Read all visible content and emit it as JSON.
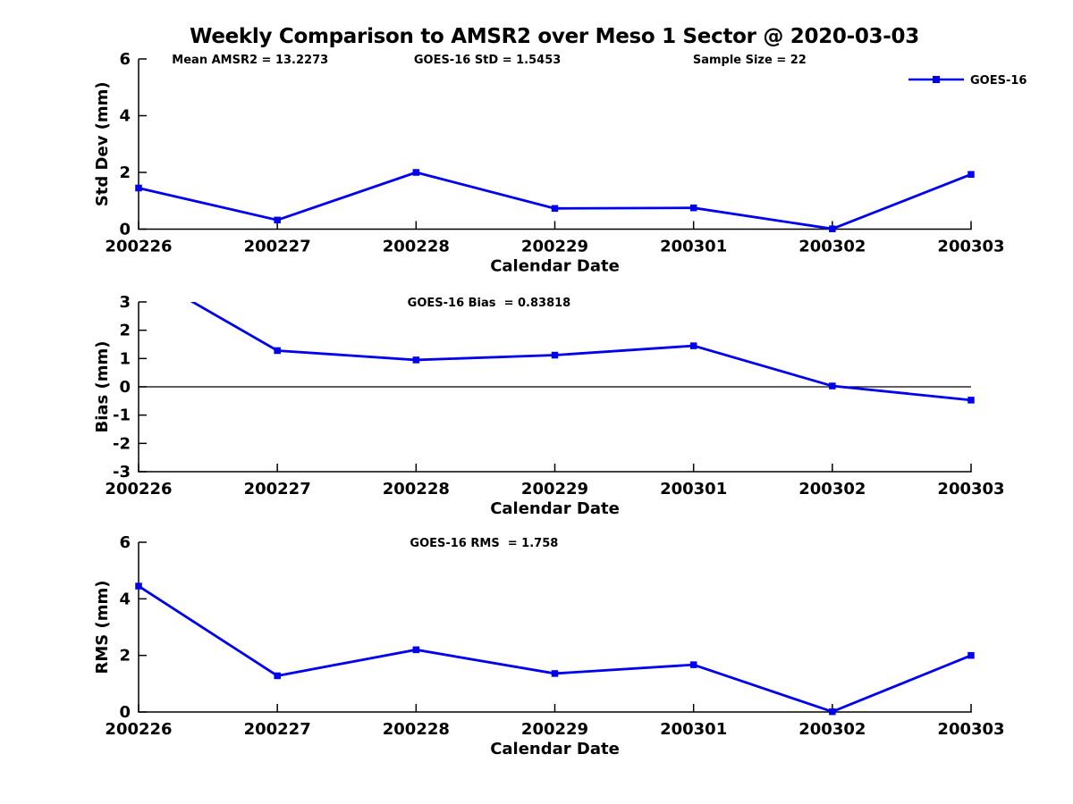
{
  "page": {
    "title": "Weekly Comparison to AMSR2 over Meso 1 Sector @ 2020-03-03"
  },
  "legend": {
    "label": "GOES-16",
    "marker": "square"
  },
  "colors": {
    "line": "#0000ee",
    "axis": "#000000",
    "zero_line": "#000000",
    "text": "#000000",
    "background": "#ffffff"
  },
  "chart_data": [
    {
      "type": "line",
      "id": "stddev",
      "title": "",
      "annotations": [
        "Mean AMSR2 = 13.2273",
        "GOES-16 StD = 1.5453",
        "Sample Size = 22"
      ],
      "xlabel": "Calendar Date",
      "ylabel": "Std Dev (mm)",
      "ylim": [
        0,
        6
      ],
      "yticks": [
        0,
        2,
        4,
        6
      ],
      "categories": [
        "200226",
        "200227",
        "200228",
        "200229",
        "200301",
        "200302",
        "200303"
      ],
      "series": [
        {
          "name": "GOES-16",
          "marker": "square",
          "values": [
            1.45,
            0.32,
            2.0,
            0.73,
            0.75,
            0.01,
            1.93
          ]
        }
      ],
      "zero_line": false,
      "grid": false,
      "legend_position": "top-right"
    },
    {
      "type": "line",
      "id": "bias",
      "title": "",
      "annotations": [
        "GOES-16 Bias  = 0.83818"
      ],
      "xlabel": "Calendar Date",
      "ylabel": "Bias (mm)",
      "ylim": [
        -3,
        3
      ],
      "yticks": [
        -3,
        -2,
        -1,
        0,
        1,
        2,
        3
      ],
      "categories": [
        "200226",
        "200227",
        "200228",
        "200229",
        "200301",
        "200302",
        "200303"
      ],
      "series": [
        {
          "name": "GOES-16",
          "marker": "square",
          "values": [
            4.1,
            1.28,
            0.95,
            1.12,
            1.45,
            0.03,
            -0.47
          ]
        }
      ],
      "zero_line": true,
      "grid": false,
      "legend_position": "none"
    },
    {
      "type": "line",
      "id": "rms",
      "title": "",
      "annotations": [
        "GOES-16 RMS  = 1.758"
      ],
      "xlabel": "Calendar Date",
      "ylabel": "RMS (mm)",
      "ylim": [
        0,
        6
      ],
      "yticks": [
        0,
        2,
        4,
        6
      ],
      "categories": [
        "200226",
        "200227",
        "200228",
        "200229",
        "200301",
        "200302",
        "200303"
      ],
      "series": [
        {
          "name": "GOES-16",
          "marker": "square",
          "values": [
            4.45,
            1.28,
            2.2,
            1.36,
            1.67,
            0.01,
            2.0
          ]
        }
      ],
      "zero_line": false,
      "grid": false,
      "legend_position": "none"
    }
  ]
}
